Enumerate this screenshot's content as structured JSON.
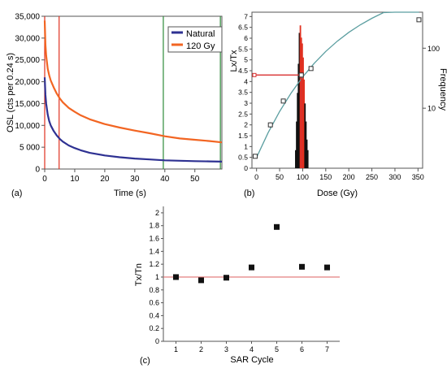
{
  "chart_data": [
    {
      "type": "line",
      "panel_label": "(a)",
      "xlabel": "Time (s)",
      "ylabel": "OSL (cts per 0.24 s)",
      "xlim": [
        0,
        59
      ],
      "ylim": [
        0,
        35000
      ],
      "x_ticks": [
        "0",
        "10",
        "20",
        "30",
        "40",
        "50"
      ],
      "y_ticks": [
        "0",
        "5 000",
        "10,000",
        "15,000",
        "20,000",
        "25,000",
        "30,000",
        "35,000"
      ],
      "legend_position": "top-right",
      "grid": false,
      "series": [
        {
          "name": "Natural",
          "color": "#2e3192",
          "x": [
            0,
            0.25,
            0.5,
            1,
            1.5,
            2,
            3,
            4,
            5,
            6,
            8,
            10,
            12,
            15,
            20,
            25,
            30,
            35,
            40,
            45,
            50,
            55,
            59
          ],
          "y": [
            21000,
            17000,
            15000,
            12500,
            11000,
            10000,
            8700,
            7700,
            6900,
            6300,
            5400,
            4800,
            4300,
            3700,
            3100,
            2700,
            2400,
            2200,
            2000,
            1900,
            1800,
            1750,
            1700
          ]
        },
        {
          "name": "120 Gy",
          "color": "#f26522",
          "x": [
            0,
            0.25,
            0.5,
            1,
            1.5,
            2,
            3,
            4,
            5,
            6,
            8,
            10,
            12,
            15,
            20,
            25,
            30,
            35,
            40,
            45,
            50,
            55,
            59
          ],
          "y": [
            34000,
            28500,
            26000,
            23000,
            21500,
            20300,
            18700,
            17300,
            16200,
            15300,
            14000,
            13100,
            12300,
            11400,
            10300,
            9500,
            8800,
            8200,
            7500,
            7000,
            6700,
            6400,
            6100
          ]
        }
      ],
      "vertical_lines": [
        {
          "x": 0,
          "color": "#e03020"
        },
        {
          "x": 4.8,
          "color": "#e03020"
        },
        {
          "x": 39.5,
          "color": "#2e8b3a"
        },
        {
          "x": 58.5,
          "color": "#2e8b3a"
        }
      ]
    },
    {
      "type": "scatter",
      "panel_label": "(b)",
      "xlabel": "Dose (Gy)",
      "ylabel": "Lx/Tx",
      "y2label": "Frequency",
      "xlim": [
        -10,
        360
      ],
      "ylim": [
        0,
        7.2
      ],
      "x_ticks": [
        "0",
        "50",
        "100",
        "150",
        "200",
        "250",
        "300",
        "350"
      ],
      "y_ticks": [
        "0",
        "0.5",
        "1",
        "1.5",
        "2",
        "2.5",
        "3",
        "3.5",
        "4",
        "4.5",
        "5",
        "5.5",
        "6",
        "6.5",
        "7"
      ],
      "y2_ticks": [
        "10",
        "100"
      ],
      "points": {
        "x": [
          -3,
          30,
          58,
          97,
          118,
          352
        ],
        "y": [
          0.55,
          2.0,
          3.1,
          4.3,
          4.6,
          6.85
        ],
        "err": [
          0.08,
          0.12,
          0.08,
          0.1,
          0.1,
          0.1
        ]
      },
      "growth_curve": {
        "color": "#5b9ea0",
        "x": [
          0,
          25,
          50,
          75,
          100,
          125,
          150,
          175,
          200,
          225,
          250,
          275,
          300,
          325,
          352
        ],
        "y": [
          0.5,
          1.64,
          2.62,
          3.47,
          4.21,
          4.84,
          5.39,
          5.86,
          6.27,
          6.62,
          6.92,
          7.18,
          7.41,
          7.6,
          7.78
        ]
      },
      "natural_projection": {
        "y": 4.3,
        "dose": 97,
        "color": "#d93030"
      },
      "histogram": {
        "x": [
          83,
          85,
          87,
          89,
          91,
          93,
          95,
          97,
          99,
          101,
          103,
          105,
          107,
          109,
          111,
          113
        ],
        "frequency": [
          1,
          2,
          6,
          18,
          55,
          180,
          240,
          150,
          120,
          70,
          30,
          12,
          6,
          3,
          2,
          1
        ]
      }
    },
    {
      "type": "scatter",
      "panel_label": "(c)",
      "xlabel": "SAR Cycle",
      "ylabel": "Tx/Tn",
      "xlim": [
        0.5,
        7.5
      ],
      "ylim": [
        0,
        2.1
      ],
      "x_ticks": [
        "1",
        "2",
        "3",
        "4",
        "5",
        "6",
        "7"
      ],
      "y_ticks": [
        "0",
        "0.2",
        "0.4",
        "0.6",
        "0.8",
        "1",
        "1.2",
        "1.4",
        "1.6",
        "1.8",
        "2"
      ],
      "x": [
        1,
        2,
        3,
        4,
        5,
        6,
        7
      ],
      "y": [
        1.0,
        0.95,
        0.99,
        1.15,
        1.78,
        1.16,
        1.15
      ],
      "reference_line": {
        "y": 1,
        "color": "#e07070"
      }
    }
  ]
}
